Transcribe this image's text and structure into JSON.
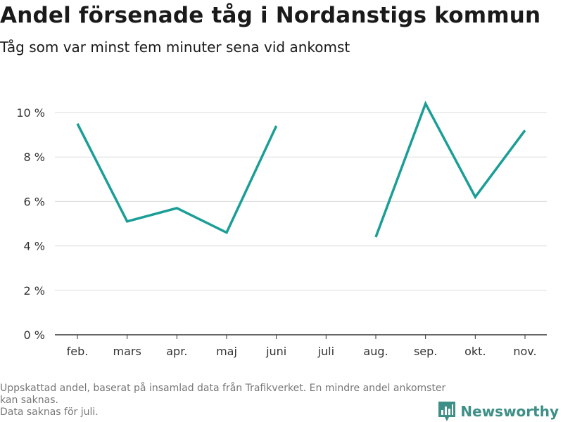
{
  "header": {
    "title": "Andel försenade tåg i Nordanstigs kommun",
    "subtitle": "Tåg som var minst fem minuter sena vid ankomst"
  },
  "footer": {
    "note_line1": "Uppskattad andel, baserat på insamlad data från Trafikverket. En mindre andel ankomster kan saknas.",
    "note_line2": "Data saknas för juli."
  },
  "brand": {
    "name": "Newsworthy",
    "icon": "newsworthy-logo-icon",
    "color": "#3d8f87"
  },
  "chart_data": {
    "type": "line",
    "categories": [
      "feb.",
      "mars",
      "apr.",
      "maj",
      "juni",
      "juli",
      "aug.",
      "sep.",
      "okt.",
      "nov."
    ],
    "series": [
      {
        "values": [
          9.5,
          5.1,
          5.7,
          4.6,
          9.4,
          null,
          4.4,
          10.4,
          6.2,
          9.2
        ],
        "color": "#1a9e96"
      }
    ],
    "ylim": [
      0,
      10
    ],
    "yticks": [
      0,
      2,
      4,
      6,
      8,
      10
    ],
    "ytick_labels": [
      "0 %",
      "2 %",
      "4 %",
      "6 %",
      "8 %",
      "10 %"
    ],
    "grid": true,
    "xlabel": "",
    "ylabel": ""
  }
}
